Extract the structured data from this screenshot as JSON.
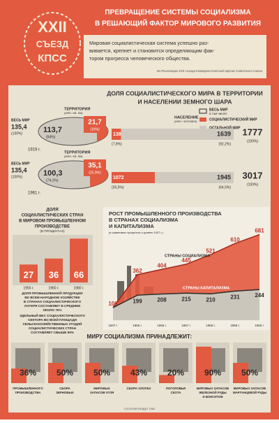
{
  "header": {
    "badge": [
      "XXII",
      "СЪЕЗД",
      "КПСС"
    ],
    "title": [
      "ПРЕВРАЩЕНИЕ СИСТЕМЫ СОЦИАЛИЗМА",
      "В РЕШАЮЩИЙ ФАКТОР МИРОВОГО РАЗВИТИЯ"
    ],
    "quote": [
      "Мировая социалистическая система успешно раз-",
      "вивается, крепнет и становится определяющим фак-",
      "тором прогресса человеческого общества."
    ],
    "source": "Из Резолюции XXII съезда Коммунистической партии Советского Союза"
  },
  "world_share": {
    "title": [
      "ДОЛЯ СОЦИАЛИСТИЧЕСКОГО МИРА В ТЕРРИТОРИИ",
      "И НАСЕЛЕНИИ ЗЕМНОГО ШАРА"
    ],
    "legend": {
      "world": "ВЕСЬ МИР",
      "incl": "в том числе:",
      "socialist": "СОЦИАЛИСТИЧЕСКИЙ МИР",
      "rest": "ОСТАЛЬНОЙ МИР"
    },
    "territory_label": [
      "ТЕРРИТОРИЯ",
      "(МЛН. КВ. КМ)"
    ],
    "population_label": [
      "НАСЕЛЕНИЕ",
      "(МЛН. ЧЕЛОВЕК)"
    ],
    "world_label": "ВЕСЬ МИР",
    "rows": [
      {
        "year": "1919 г.",
        "territory": {
          "world": {
            "value": 135.4,
            "label": "135,4"
          },
          "world_pct": "(100%)",
          "rest": {
            "value": 113.7,
            "label": "113,7"
          },
          "rest_pct": "(84%)",
          "socialist": {
            "value": 21.7,
            "label": "21,7"
          },
          "socialist_pct": "(16%)"
        },
        "population": {
          "socialist": 138,
          "socialist_pct": "(7,8%)",
          "rest": 1639,
          "rest_pct": "(92,2%)",
          "world": 1777,
          "world_pct": "(100%)"
        }
      },
      {
        "year": "1961 г.",
        "territory": {
          "world": {
            "value": 135.4,
            "label": "135,4"
          },
          "world_pct": "(100%)",
          "rest": {
            "value": 100.3,
            "label": "100,3"
          },
          "rest_pct": "(74,1%)",
          "socialist": {
            "value": 35.1,
            "label": "35,1"
          },
          "socialist_pct": "(25,9%)"
        },
        "population": {
          "socialist": 1072,
          "socialist_pct": "(35,5%)",
          "rest": 1945,
          "rest_pct": "(64,5%)",
          "world": 3017,
          "world_pct": "(100%)"
        }
      }
    ]
  },
  "industry_share": {
    "title": [
      "ДОЛЯ",
      "СОЦИАЛИСТИЧЕСКИХ СТРАН",
      "В МИРОВОМ ПРОМЫШЛЕННОМ",
      "ПРОИЗВОДСТВЕ"
    ],
    "unit": "(В ПРОЦЕНТАХ)",
    "bars": [
      {
        "year": "1955 г.",
        "value": 27
      },
      {
        "year": "1960 г.",
        "value": 36
      },
      {
        "year": "1980 г.",
        "value": 66
      }
    ],
    "notes": [
      [
        "ДОЛЯ ПРОМЫШЛЕННОЙ ПРОДУКЦИИ",
        "ВО ВСЕМ НАРОДНОМ ХОЗЯЙСТВЕ",
        "В СТРАНАХ СОЦИАЛИСТИЧЕСКОГО",
        "ЛАГЕРЯ СОСТАВЛЯЕТ В СРЕДНЕМ",
        "ОКОЛО 75%"
      ],
      [
        "УДЕЛЬНЫЙ ВЕС СОЦИАЛИСТИЧЕСКОГО",
        "СЕКТОРА ВО ВСЕЙ ПЛОЩАДИ",
        "СЕЛЬСКОХОЗЯЙСТВЕННЫХ УГОДИЙ",
        "СОЦИАЛИСТИЧЕСКИХ СТРАН",
        "СОСТАВЛЯЕТ СВЫШЕ 90%"
      ]
    ]
  },
  "growth": {
    "title": [
      "РОСТ ПРОМЫШЛЕННОГО ПРОИЗВОДСТВА",
      "В СТРАНАХ СОЦИАЛИЗМА",
      "И КАПИТАЛИЗМА"
    ],
    "subtitle": "(в сравнимых процентах к уровню 1937 г.)",
    "years": [
      "1937 г.",
      "1955 г.",
      "1956 г.",
      "1957 г.",
      "1958 г.",
      "1959 г.",
      "1960 г."
    ],
    "series": [
      {
        "name": "СТРАНЫ СОЦИАЛИЗМА",
        "values": [
          100,
          362,
          404,
          445,
          521,
          610,
          681
        ]
      },
      {
        "name": "СТРАНЫ КАПИТАЛИЗМА",
        "values": [
          100,
          199,
          208,
          215,
          210,
          231,
          244
        ]
      }
    ]
  },
  "belongs": {
    "title": "МИРУ СОЦИАЛИЗМА ПРИНАДЛЕЖИТ:",
    "items": [
      {
        "value": 36,
        "label": "36%",
        "caption": [
          "ПРОМЫШЛЕННОГО",
          "ПРОИЗВОДСТВА"
        ]
      },
      {
        "value": 50,
        "label": "50%",
        "caption": [
          "СБОРА",
          "ЗЕРНОВЫХ"
        ]
      },
      {
        "value": 50,
        "label": "50%",
        "caption": [
          "МИРОВЫХ",
          "ЗАПАСОВ УГЛЯ"
        ]
      },
      {
        "value": 43,
        "label": "43%",
        "caption": [
          "СБОРА ХЛОПКА"
        ]
      },
      {
        "value": 20,
        "label": "20%",
        "caption": [
          "ПОГОЛОВЬЯ",
          "СКОТА"
        ]
      },
      {
        "value": 90,
        "label": "90%",
        "caption": [
          "МИРОВЫХ ЗАПАСОВ",
          "ЖЕЛЕЗНОЙ РУДЫ",
          "И БОКСИТОВ"
        ]
      },
      {
        "value": 50,
        "label": "50%",
        "caption": [
          "МИРОВЫХ ЗАПАСОВ",
          "МАРГАНЦЕВОЙ РУДЫ"
        ]
      }
    ]
  },
  "footer": "ГОСПОЛИТИЗДАТ 1962"
}
